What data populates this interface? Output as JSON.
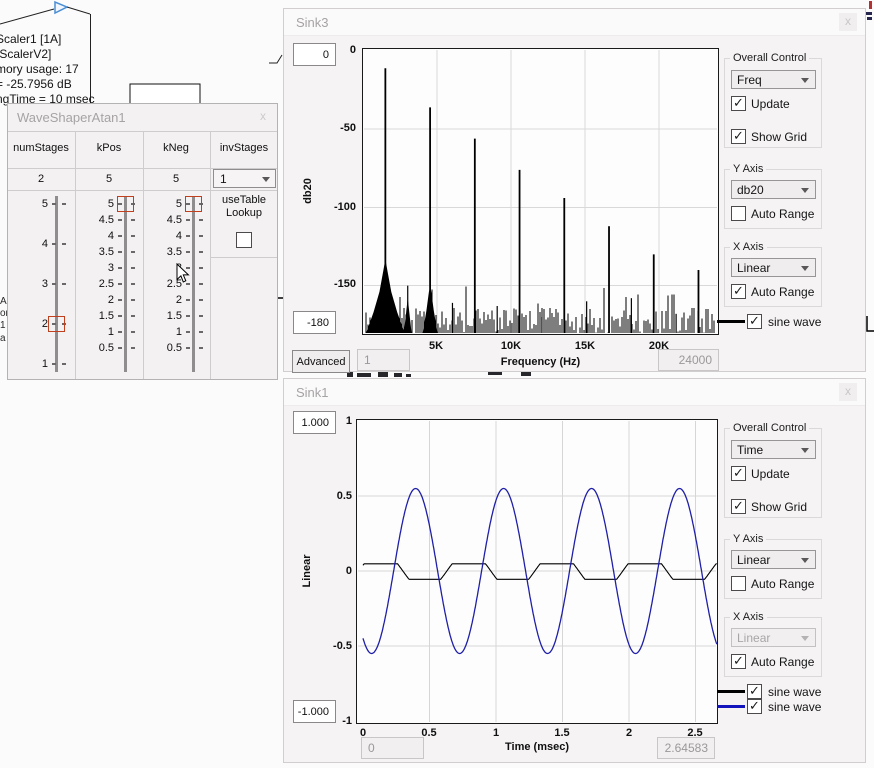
{
  "canvas": {
    "scaler_lines": [
      "Scaler1 [1A]",
      "[ScalerV2]",
      "mory usage: 17",
      "= -25.7956 dB",
      "ngTime = 10 msec"
    ],
    "edge_fragments": [
      "A",
      "or",
      "1",
      "a"
    ]
  },
  "waveshaper": {
    "title": "WaveShaperAtan1",
    "close_glyph": "x",
    "handle_color": "#ea512e",
    "columns": [
      {
        "name": "numStages",
        "value": "2",
        "ticks": [
          "5",
          "4",
          "3",
          "2",
          "1"
        ],
        "handle_tick_index": 3
      },
      {
        "name": "kPos",
        "value": "5",
        "ticks": [
          "5",
          "4.5",
          "4",
          "3.5",
          "3",
          "2.5",
          "2",
          "1.5",
          "1",
          "0.5"
        ],
        "handle_tick_index": 0
      },
      {
        "name": "kNeg",
        "value": "5",
        "ticks": [
          "5",
          "4.5",
          "4",
          "3.5",
          "3",
          "2.5",
          "2",
          "1.5",
          "1",
          "0.5"
        ],
        "handle_tick_index": 0
      },
      {
        "name": "invStages",
        "value": "1",
        "checkbox_label": "useTable Lookup",
        "checkbox_checked": false
      }
    ]
  },
  "sink3": {
    "title": "Sink3",
    "close_glyph": "x",
    "y_max_box": "0",
    "y_min_box": "-180",
    "x_min_box": "1",
    "x_max_box": "24000",
    "advanced_label": "Advanced",
    "ylabel": "db20",
    "xlabel": "Frequency (Hz)",
    "y_ticks": [
      "0",
      "-50",
      "-100",
      "-150"
    ],
    "x_ticks": [
      "5K",
      "10K",
      "15K",
      "20K"
    ],
    "controls": {
      "overall": {
        "label": "Overall Control",
        "dropdown": "Freq",
        "update": {
          "label": "Update",
          "checked": true
        },
        "show_grid": {
          "label": "Show Grid",
          "checked": true
        }
      },
      "y_axis": {
        "label": "Y Axis",
        "dropdown": "db20",
        "auto_range": {
          "label": "Auto Range",
          "checked": false
        }
      },
      "x_axis": {
        "label": "X Axis",
        "dropdown": "Linear",
        "disabled": false,
        "auto_range": {
          "label": "Auto Range",
          "checked": true
        }
      },
      "legend": [
        {
          "label": "sine wave",
          "checked": true,
          "color": "#000000"
        }
      ]
    }
  },
  "sink1": {
    "title": "Sink1",
    "close_glyph": "x",
    "y_max_box": "1.000",
    "y_min_box": "-1.000",
    "x_min_box": "0",
    "x_max_box": "2.64583",
    "ylabel": "Linear",
    "xlabel": "Time (msec)",
    "y_ticks": [
      "1",
      "0.5",
      "0",
      "-0.5",
      "-1"
    ],
    "x_ticks": [
      "0",
      "0.5",
      "1",
      "1.5",
      "2",
      "2.5"
    ],
    "controls": {
      "overall": {
        "label": "Overall Control",
        "dropdown": "Time",
        "update": {
          "label": "Update",
          "checked": true
        },
        "show_grid": {
          "label": "Show Grid",
          "checked": true
        }
      },
      "y_axis": {
        "label": "Y Axis",
        "dropdown": "Linear",
        "auto_range": {
          "label": "Auto Range",
          "checked": false
        }
      },
      "x_axis": {
        "label": "X Axis",
        "dropdown": "Linear",
        "disabled": true,
        "auto_range": {
          "label": "Auto Range",
          "checked": true
        }
      },
      "legend": [
        {
          "label": "sine wave",
          "checked": true,
          "color": "#000000"
        },
        {
          "label": "sine wave",
          "checked": true,
          "color": "#1414bd"
        }
      ]
    }
  },
  "chart_data": [
    {
      "id": "sink3_spectrum",
      "type": "line",
      "title": "Sink3 FFT spectrum",
      "xlabel": "Frequency (Hz)",
      "ylabel": "db20",
      "xlim": [
        0,
        24000
      ],
      "ylim": [
        -180,
        0
      ],
      "grid": true,
      "x_gridlines": [
        5000,
        10000,
        15000,
        20000
      ],
      "y_gridlines": [
        -50,
        -100,
        -150
      ],
      "series": [
        {
          "name": "sine wave",
          "color": "#000000",
          "harmonics": [
            {
              "freq_hz": 1512,
              "level_db": -11
            },
            {
              "freq_hz": 3024,
              "level_db": -150
            },
            {
              "freq_hz": 4536,
              "level_db": -36
            },
            {
              "freq_hz": 6048,
              "level_db": -161
            },
            {
              "freq_hz": 7560,
              "level_db": -56
            },
            {
              "freq_hz": 9072,
              "level_db": -163
            },
            {
              "freq_hz": 10584,
              "level_db": -76
            },
            {
              "freq_hz": 12096,
              "level_db": -170
            },
            {
              "freq_hz": 13608,
              "level_db": -94
            },
            {
              "freq_hz": 15120,
              "level_db": -160
            },
            {
              "freq_hz": 16632,
              "level_db": -112
            },
            {
              "freq_hz": 18144,
              "level_db": -158
            },
            {
              "freq_hz": 19656,
              "level_db": -130
            },
            {
              "freq_hz": 21168,
              "level_db": -168
            },
            {
              "freq_hz": 22680,
              "level_db": -140
            }
          ],
          "skirts": [
            {
              "center_hz": 1512,
              "points": [
                [
                  -1300,
                  -181
                ],
                [
                  -800,
                  -167
                ],
                [
                  -400,
                  -154
                ],
                [
                  -150,
                  -141
                ],
                [
                  0,
                  -133
                ],
                [
                  150,
                  -141
                ],
                [
                  400,
                  -154
                ],
                [
                  800,
                  -167
                ],
                [
                  1300,
                  -181
                ]
              ]
            },
            {
              "center_hz": 4536,
              "points": [
                [
                  -500,
                  -181
                ],
                [
                  -250,
                  -166
                ],
                [
                  -80,
                  -154
                ],
                [
                  0,
                  -151
                ],
                [
                  80,
                  -154
                ],
                [
                  250,
                  -166
                ],
                [
                  500,
                  -181
                ]
              ]
            },
            {
              "center_hz": 3024,
              "points": [
                [
                  -260,
                  -181
                ],
                [
                  0,
                  -158
                ],
                [
                  260,
                  -181
                ]
              ]
            }
          ],
          "noise_floor_db": [
            -181,
            -164
          ],
          "sparse_spike_db": [
            -163,
            -150
          ]
        }
      ]
    },
    {
      "id": "sink1_scope",
      "type": "line",
      "title": "Sink1 oscilloscope",
      "xlabel": "Time (msec)",
      "ylabel": "Linear",
      "xlim": [
        0,
        2.64583
      ],
      "ylim": [
        -1,
        1
      ],
      "grid": true,
      "x_gridlines": [
        0.5,
        1,
        1.5,
        2,
        2.5
      ],
      "y_gridlines": [
        0.5,
        0,
        -0.5
      ],
      "series": [
        {
          "name": "sine wave",
          "color": "#000000",
          "waveform": "clipped_sine",
          "pre_clip_amplitude": 0.13,
          "clip_pos": 0.048,
          "clip_neg": -0.055,
          "period_msec": 0.6614,
          "min_at_msec": 0.465
        },
        {
          "name": "sine wave",
          "color": "#1f1fa8",
          "waveform": "sine",
          "amplitude": 0.55,
          "period_msec": 0.6614,
          "min_at_msec": 0.065
        }
      ]
    }
  ]
}
